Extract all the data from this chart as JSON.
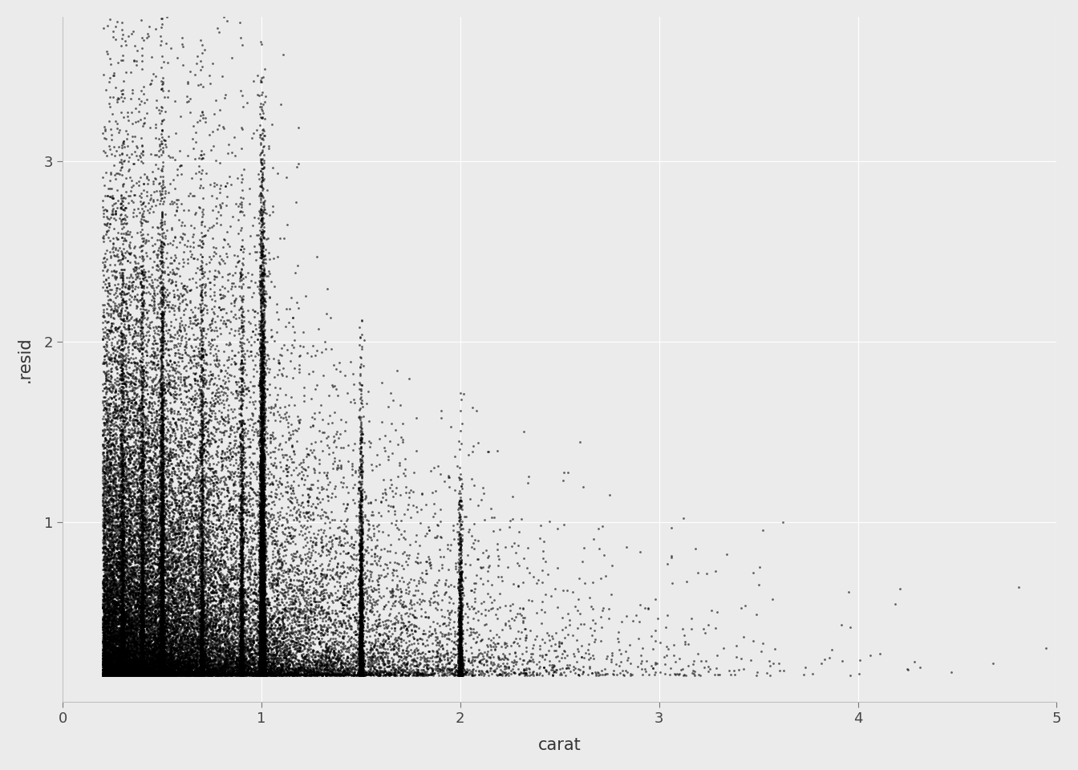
{
  "title": "",
  "xlabel": "carat",
  "ylabel": ".resid",
  "xlim": [
    0,
    5
  ],
  "ylim": [
    0,
    3.8
  ],
  "x_ticks": [
    0,
    1,
    2,
    3,
    4,
    5
  ],
  "y_ticks": [
    1,
    2,
    3
  ],
  "background_color": "#EBEBEB",
  "grid_color": "#FFFFFF",
  "point_color": "#000000",
  "point_size": 4,
  "point_alpha": 0.6,
  "n_points": 53940,
  "seed": 42
}
